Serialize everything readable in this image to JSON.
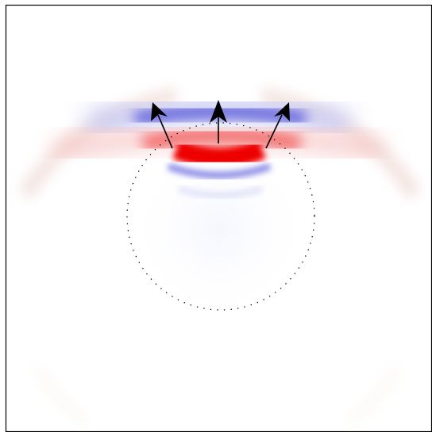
{
  "figure": {
    "type": "wavefront-field-plot",
    "colors": {
      "background": "#ffffff",
      "frame": "#000000",
      "positive": "#ee0000",
      "negative": "#3a3ae0",
      "faint_rings": "#f6efe6",
      "markers": "#000000"
    },
    "elements": {
      "dotted_circle": "dotted-boundary-circle",
      "wavefront": "curved-wave-band",
      "arrows": [
        "arrow-left",
        "arrow-center",
        "arrow-right"
      ]
    }
  }
}
